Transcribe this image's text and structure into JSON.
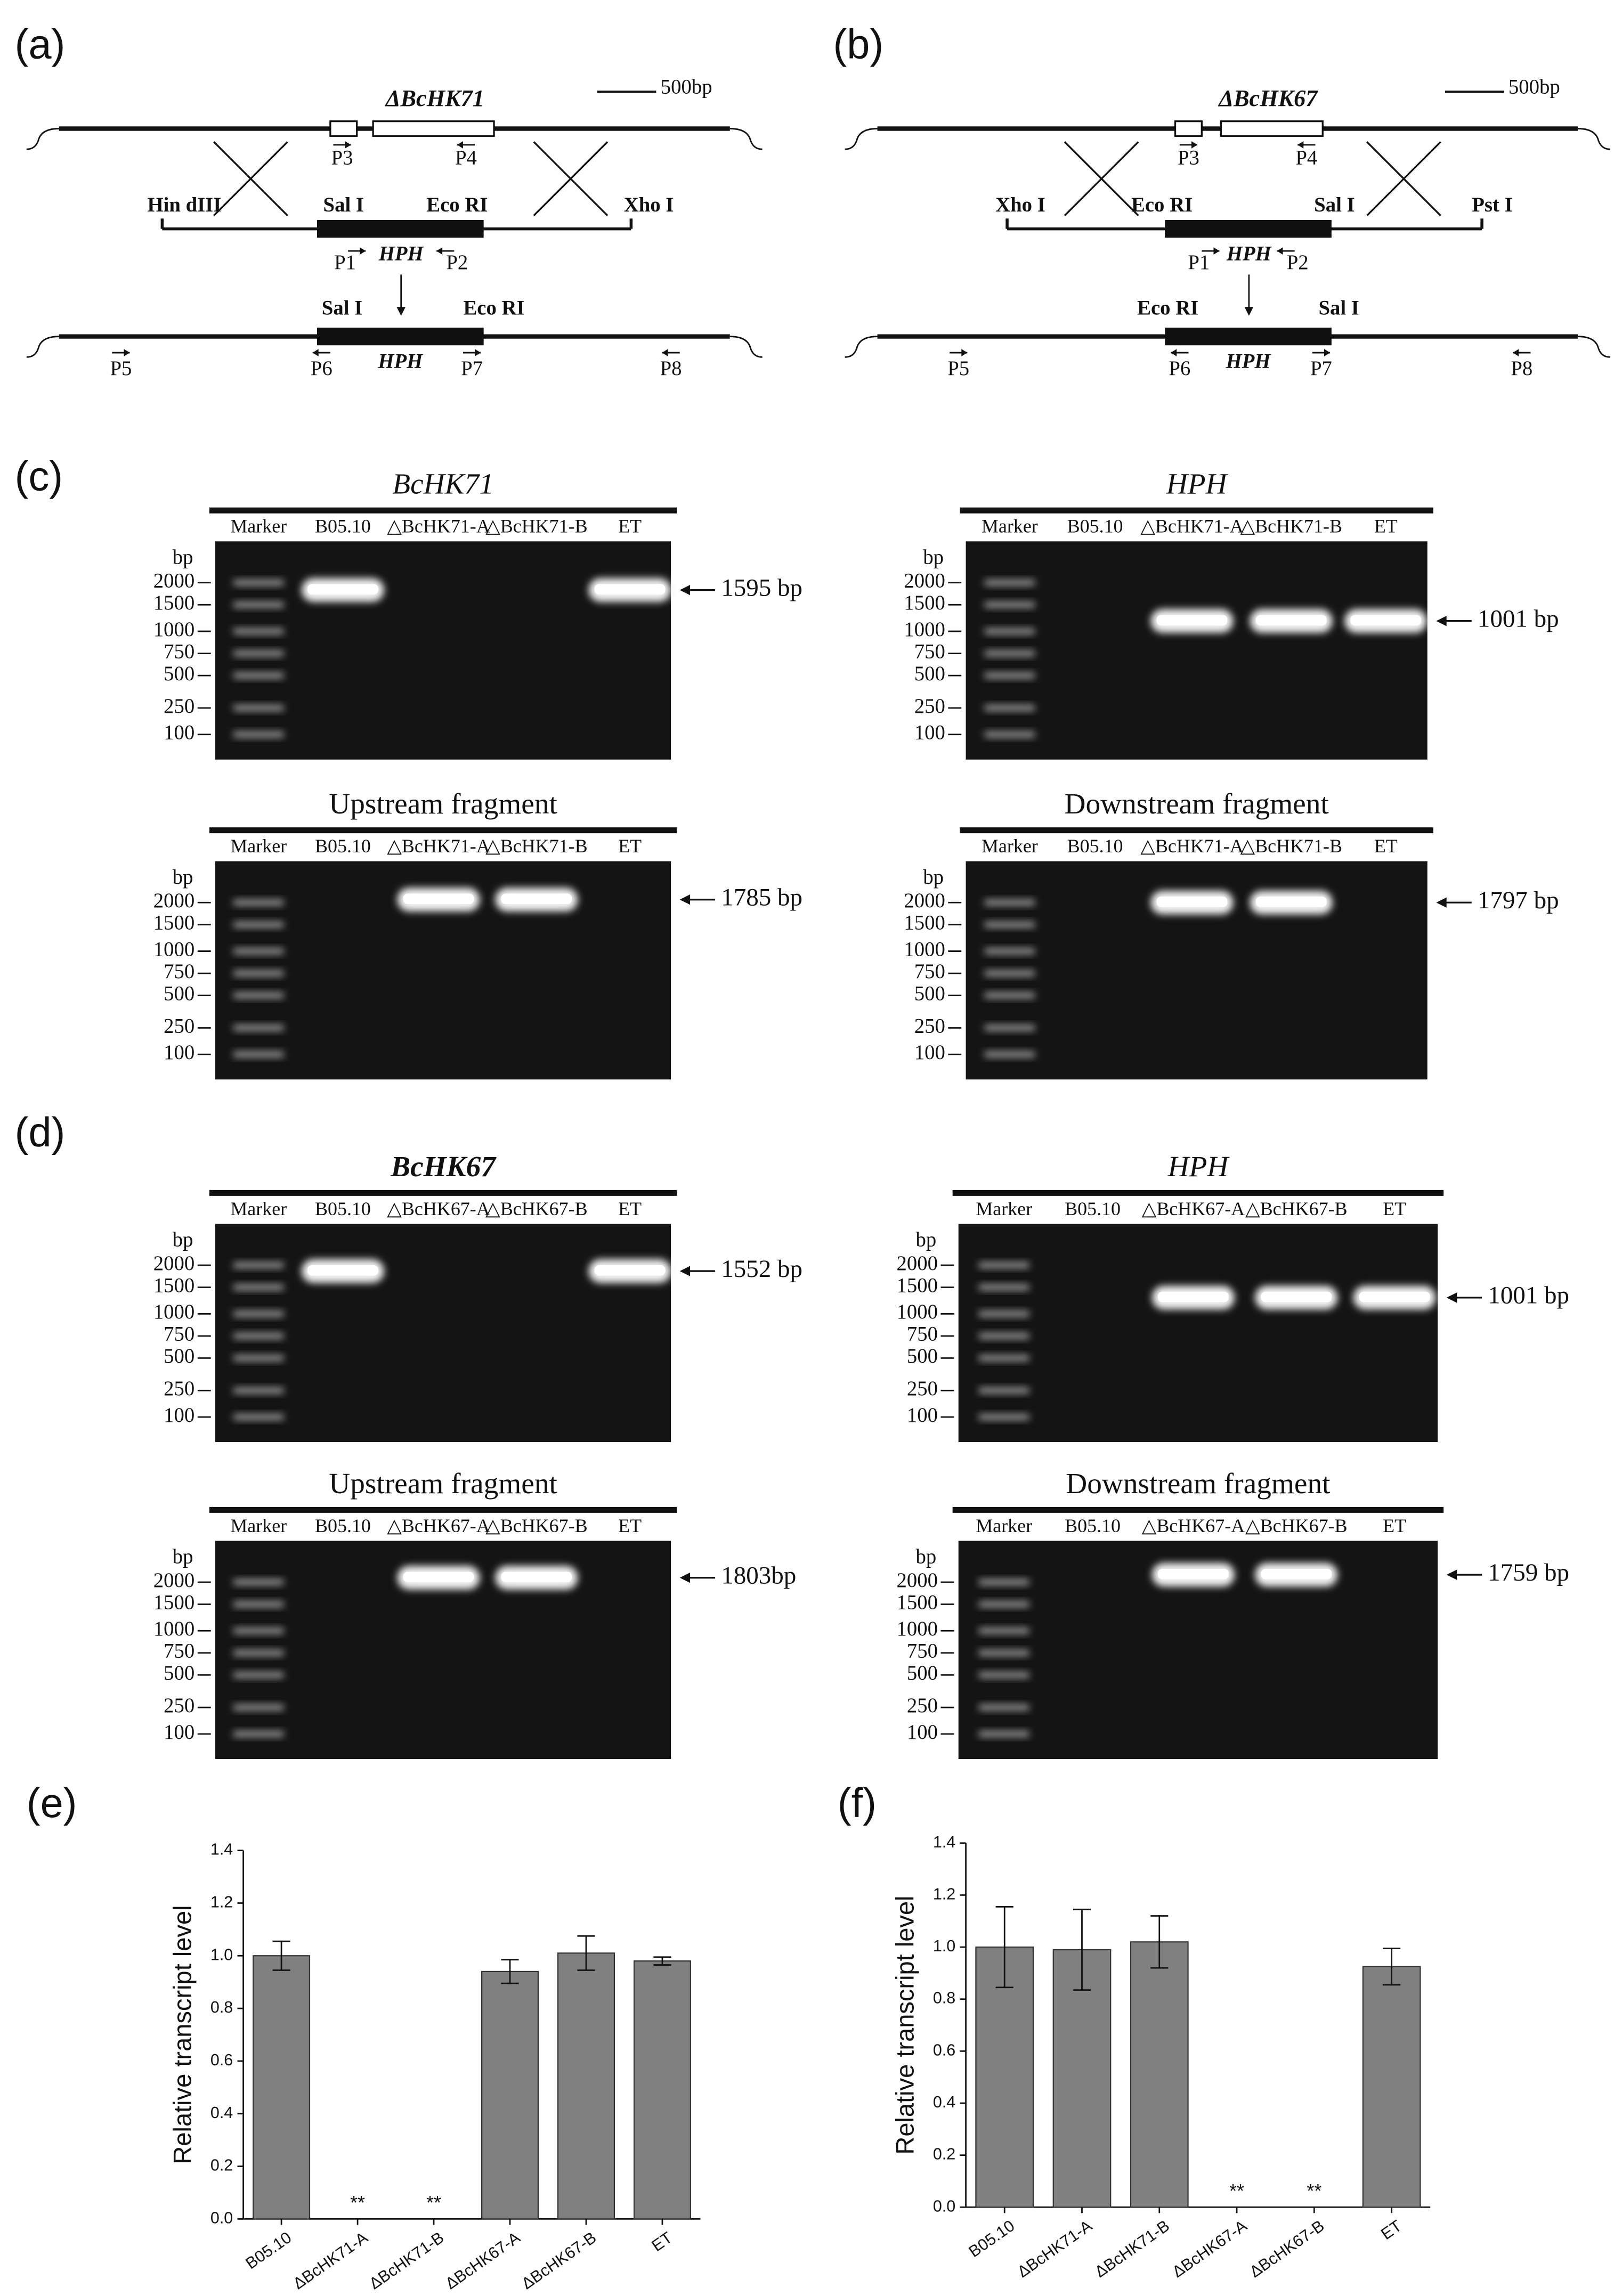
{
  "panels": {
    "a": {
      "label": "(a)",
      "scale": "500bp",
      "gene": "ΔBcHK71",
      "marker": "HPH",
      "primers": [
        "P1",
        "P2",
        "P3",
        "P4",
        "P5",
        "P6",
        "P7",
        "P8"
      ],
      "sites_top": [
        "Hin dIII",
        "Sal I",
        "Eco RI",
        "Xho I"
      ],
      "sites_bottom": [
        "Sal I",
        "Eco RI"
      ]
    },
    "b": {
      "label": "(b)",
      "scale": "500bp",
      "gene": "ΔBcHK67",
      "marker": "HPH",
      "primers": [
        "P1",
        "P2",
        "P3",
        "P4",
        "P5",
        "P6",
        "P7",
        "P8"
      ],
      "sites_top": [
        "Xho I",
        "Eco RI",
        "Sal I",
        "Pst I"
      ],
      "sites_bottom": [
        "Eco RI",
        "Sal I"
      ]
    },
    "c": {
      "label": "(c)",
      "lanes": [
        "Marker",
        "B05.10",
        "△BcHK71-A",
        "△BcHK71-B",
        "ET"
      ],
      "ladder_unit": "bp",
      "ladder": [
        "2000",
        "1500",
        "1000",
        "750",
        "500",
        "250",
        "100"
      ],
      "gels": [
        {
          "title": "BcHK71",
          "band": "1595 bp"
        },
        {
          "title": "HPH",
          "band": "1001 bp"
        },
        {
          "title": "Upstream fragment",
          "band": "1785 bp"
        },
        {
          "title": "Downstream fragment",
          "band": "1797 bp"
        }
      ]
    },
    "d": {
      "label": "(d)",
      "lanes": [
        "Marker",
        "B05.10",
        "△BcHK67-A",
        "△BcHK67-B",
        "ET"
      ],
      "ladder_unit": "bp",
      "ladder": [
        "2000",
        "1500",
        "1000",
        "750",
        "500",
        "250",
        "100"
      ],
      "gels": [
        {
          "title": "BcHK67",
          "band": "1552 bp"
        },
        {
          "title": "HPH",
          "band": "1001 bp"
        },
        {
          "title": "Upstream fragment",
          "band": "1803bp"
        },
        {
          "title": "Downstream fragment",
          "band": "1759 bp"
        }
      ]
    }
  },
  "chart_data": [
    {
      "type": "bar",
      "panel_label": "(e)",
      "y_label": "Relative transcript level",
      "categories": [
        "B05.10",
        "ΔBcHK71-A",
        "ΔBcHK71-B",
        "ΔBcHK67-A",
        "ΔBcHK67-B",
        "ET"
      ],
      "values": [
        1.0,
        0,
        0,
        0.94,
        1.01,
        0.98
      ],
      "errors": [
        0.055,
        null,
        null,
        0.045,
        0.065,
        0.015
      ],
      "significance": [
        null,
        "**",
        "**",
        null,
        null,
        null
      ],
      "color": "#808080",
      "ylim": [
        0,
        1.4
      ],
      "yticks": [
        {
          "value": 0,
          "label": "0.0"
        },
        0.2,
        0.4,
        0.6,
        0.8,
        {
          "value": 1,
          "label": "1.0"
        },
        1.2,
        1.4
      ]
    },
    {
      "type": "bar",
      "panel_label": "(f)",
      "y_label": "Relative transcript level",
      "categories": [
        "B05.10",
        "ΔBcHK71-A",
        "ΔBcHK71-B",
        "ΔBcHK67-A",
        "ΔBcHK67-B",
        "ET"
      ],
      "values": [
        1.0,
        0.99,
        1.02,
        0,
        0,
        0.925
      ],
      "errors": [
        0.155,
        0.155,
        0.1,
        null,
        null,
        0.07
      ],
      "significance": [
        null,
        null,
        null,
        "**",
        "**",
        null
      ],
      "color": "#808080",
      "ylim": [
        0,
        1.4
      ],
      "yticks": [
        {
          "value": 0,
          "label": "0.0"
        },
        0.2,
        0.4,
        0.6,
        0.8,
        {
          "value": 1,
          "label": "1.0"
        },
        1.2,
        1.4
      ]
    }
  ]
}
